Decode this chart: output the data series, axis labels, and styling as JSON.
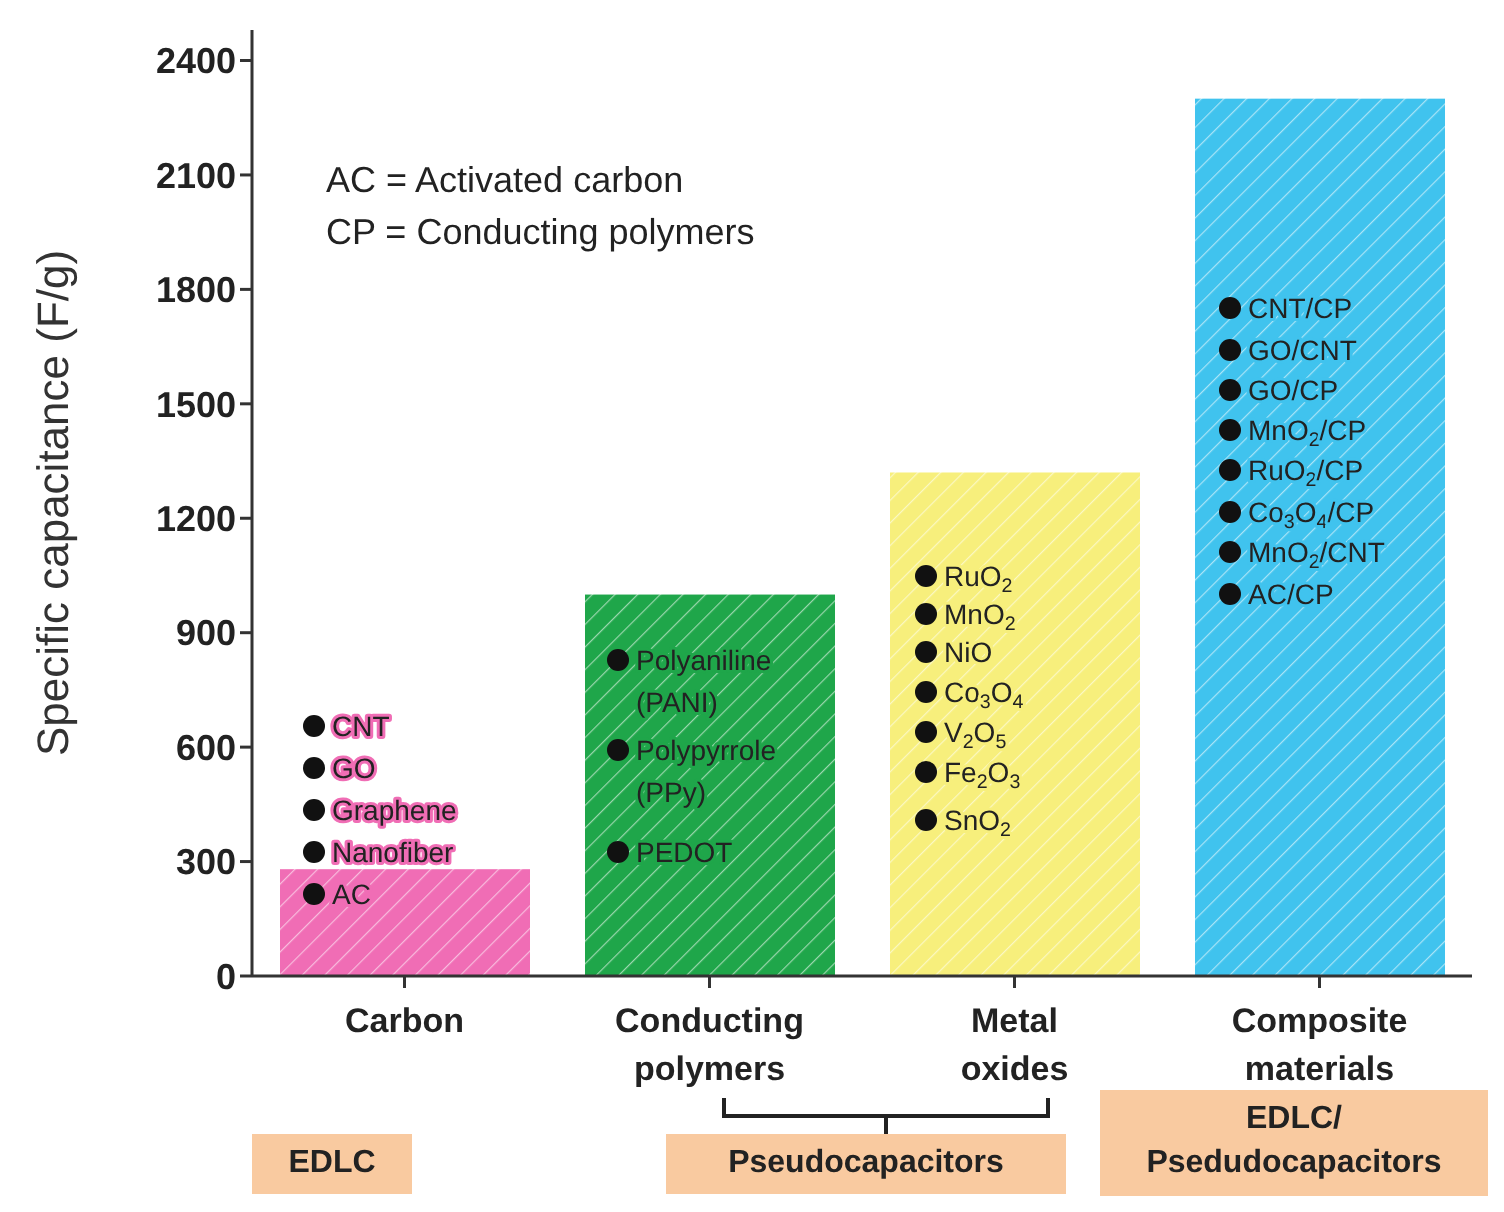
{
  "chart_data": {
    "type": "bar",
    "ylabel": "Specific capacitance (F/g)",
    "categories": [
      "Carbon",
      "Conducting polymers",
      "Metal oxides",
      "Composite materials"
    ],
    "values": [
      280,
      1000,
      1320,
      2300
    ],
    "colors": [
      "#f06db5",
      "#1fa64a",
      "#f7ef7c",
      "#40c3ee"
    ],
    "ylim": [
      0,
      2480
    ],
    "yticks": [
      0,
      300,
      600,
      900,
      1200,
      1500,
      1800,
      2100,
      2400
    ],
    "grid": false,
    "legend": false,
    "annotations": [
      "AC = Activated carbon",
      "CP = Conducting polymers",
      "EDLC",
      "Pseudocapacitors",
      "EDLC/\nPsedudocapacitors",
      "CNT",
      "GO",
      "Graphene",
      "Nanofiber",
      "AC",
      "Polyaniline\n(PANI)",
      "Polypyrrole\n(PPy)",
      "PEDOT",
      "RuO$_{2}$",
      "MnO$_{2}$",
      "NiO",
      "Co$_{3}$O$_{4}$",
      "V$_{2}$O$_{5}$",
      "Fe$_{2}$O$_{3}$",
      "SnO$_{2}$",
      "CNT/CP",
      "GO/CNT",
      "GO/CP",
      "MnO$_{2}$/CP",
      "RuO$_{2}$/CP",
      "Co$_{3}$O$_{4}$/CP",
      "MnO$_{2}$/CNT",
      "AC/CP"
    ]
  }
}
